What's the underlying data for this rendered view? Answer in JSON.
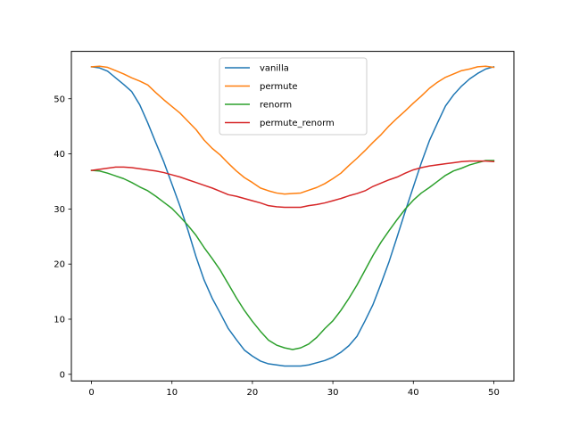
{
  "chart_data": {
    "type": "line",
    "title": "",
    "xlabel": "",
    "ylabel": "",
    "xlim": [
      -2.5,
      52.5
    ],
    "ylim": [
      -1.2,
      58.6
    ],
    "xticks": [
      0,
      10,
      20,
      30,
      40,
      50
    ],
    "yticks": [
      0,
      10,
      20,
      30,
      40,
      50
    ],
    "xtick_labels": [
      "0",
      "10",
      "20",
      "30",
      "40",
      "50"
    ],
    "ytick_labels": [
      "0",
      "10",
      "20",
      "30",
      "40",
      "50"
    ],
    "grid": false,
    "legend": "upper-center",
    "x": [
      0,
      1,
      2,
      3,
      4,
      5,
      6,
      7,
      8,
      9,
      10,
      11,
      12,
      13,
      14,
      15,
      16,
      17,
      18,
      19,
      20,
      21,
      22,
      23,
      24,
      25,
      26,
      27,
      28,
      29,
      30,
      31,
      32,
      33,
      34,
      35,
      36,
      37,
      38,
      39,
      40,
      41,
      42,
      43,
      44,
      45,
      46,
      47,
      48,
      49,
      50
    ],
    "series": [
      {
        "name": "vanilla",
        "color": "#1f77b4",
        "values": [
          55.8,
          55.6,
          55.0,
          53.8,
          52.6,
          51.3,
          48.9,
          45.6,
          42.0,
          38.5,
          34.5,
          30.5,
          26.1,
          21.3,
          17.1,
          13.8,
          11.1,
          8.3,
          6.3,
          4.4,
          3.3,
          2.4,
          1.9,
          1.7,
          1.5,
          1.5,
          1.5,
          1.7,
          2.1,
          2.5,
          3.1,
          4.0,
          5.2,
          6.9,
          9.7,
          12.7,
          16.5,
          20.5,
          25.0,
          29.6,
          34.0,
          38.4,
          42.4,
          45.6,
          48.7,
          50.7,
          52.3,
          53.6,
          54.6,
          55.4,
          55.8
        ]
      },
      {
        "name": "permute",
        "color": "#ff7f0e",
        "values": [
          55.8,
          55.9,
          55.7,
          55.1,
          54.5,
          53.8,
          53.2,
          52.5,
          51.1,
          49.8,
          48.6,
          47.4,
          45.9,
          44.4,
          42.5,
          41.0,
          39.8,
          38.3,
          36.9,
          35.7,
          34.8,
          33.8,
          33.3,
          32.9,
          32.7,
          32.8,
          32.9,
          33.4,
          33.9,
          34.6,
          35.5,
          36.5,
          37.9,
          39.2,
          40.6,
          42.1,
          43.5,
          45.1,
          46.5,
          47.8,
          49.2,
          50.5,
          51.9,
          53.0,
          53.9,
          54.5,
          55.1,
          55.4,
          55.8,
          55.9,
          55.7
        ]
      },
      {
        "name": "renorm",
        "color": "#2ca02c",
        "values": [
          37.0,
          36.9,
          36.5,
          36.0,
          35.5,
          34.8,
          34.0,
          33.3,
          32.3,
          31.2,
          30.1,
          28.6,
          27.0,
          25.2,
          23.0,
          21.0,
          18.9,
          16.4,
          13.9,
          11.6,
          9.6,
          7.8,
          6.2,
          5.3,
          4.8,
          4.5,
          4.8,
          5.5,
          6.7,
          8.3,
          9.7,
          11.6,
          13.8,
          16.2,
          18.9,
          21.6,
          24.0,
          26.1,
          28.1,
          30.0,
          31.6,
          32.9,
          33.9,
          35.0,
          36.1,
          36.9,
          37.4,
          38.0,
          38.4,
          38.8,
          38.8
        ]
      },
      {
        "name": "permute_renorm",
        "color": "#d62728",
        "values": [
          37.0,
          37.2,
          37.4,
          37.6,
          37.6,
          37.5,
          37.3,
          37.1,
          36.9,
          36.6,
          36.2,
          35.8,
          35.3,
          34.8,
          34.3,
          33.8,
          33.2,
          32.6,
          32.3,
          31.9,
          31.5,
          31.1,
          30.6,
          30.4,
          30.3,
          30.3,
          30.3,
          30.6,
          30.8,
          31.1,
          31.5,
          31.9,
          32.4,
          32.8,
          33.3,
          34.1,
          34.7,
          35.3,
          35.8,
          36.5,
          37.1,
          37.5,
          37.8,
          38.0,
          38.2,
          38.4,
          38.6,
          38.7,
          38.7,
          38.7,
          38.6
        ]
      }
    ]
  }
}
